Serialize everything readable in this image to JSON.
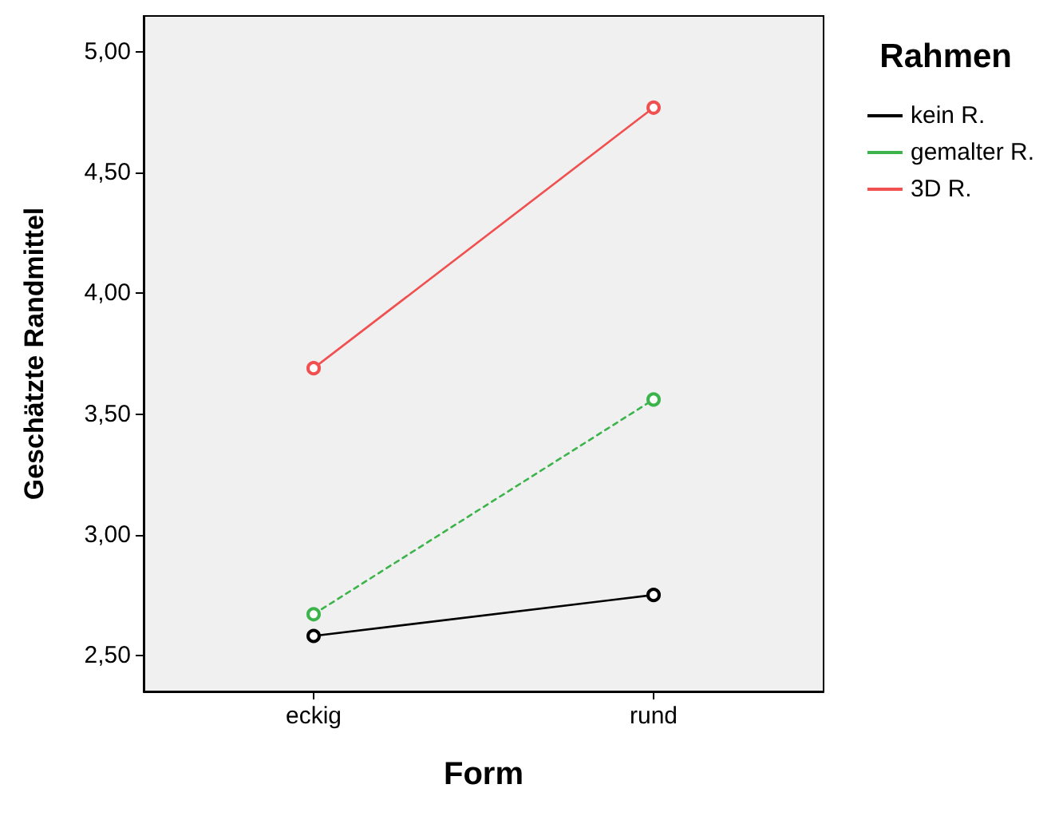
{
  "chart_data": {
    "type": "line",
    "xlabel": "Form",
    "ylabel": "Geschätzte Randmittel",
    "legend_title": "Rahmen",
    "categories": [
      "eckig",
      "rund"
    ],
    "series": [
      {
        "name": "kein R.",
        "color": "#000000",
        "values": [
          2.58,
          2.75
        ],
        "line_style": "solid"
      },
      {
        "name": "gemalter R.",
        "color": "#3cb44b",
        "values": [
          2.67,
          3.56
        ],
        "line_style": "dotted"
      },
      {
        "name": "3D R.",
        "color": "#f05050",
        "values": [
          3.69,
          4.77
        ],
        "line_style": "solid"
      }
    ],
    "ylim": [
      2.35,
      5.15
    ],
    "yticks": [
      {
        "value": 2.5,
        "label": "2,50"
      },
      {
        "value": 3,
        "label": "3,00"
      },
      {
        "value": 3.5,
        "label": "3,50"
      },
      {
        "value": 4,
        "label": "4,00"
      },
      {
        "value": 4.5,
        "label": "4,50"
      },
      {
        "value": 5,
        "label": "5,00"
      }
    ],
    "grid": false,
    "legend": "right",
    "marker": "circle"
  }
}
